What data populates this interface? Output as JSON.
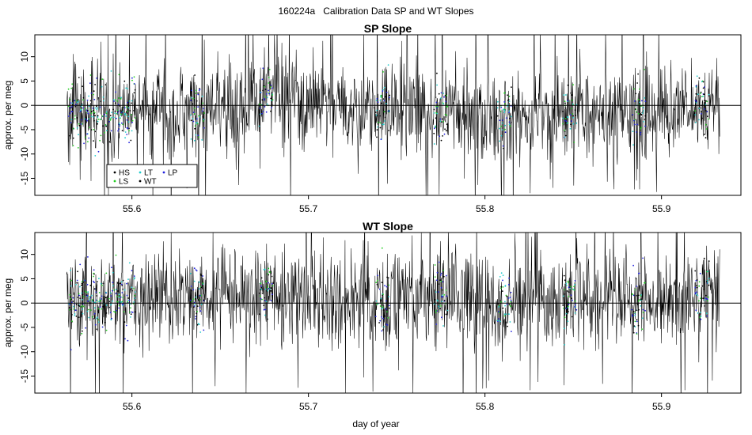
{
  "figure": {
    "title": "160224a   Calibration Data SP and WT Slopes",
    "xlabel": "day of year"
  },
  "colors": {
    "WT": "#000000",
    "HS": "#000000",
    "LS": "#22cc22",
    "LT": "#22cccc",
    "LP": "#2222dd",
    "zero_line": "#000000"
  },
  "legend": {
    "position": "bottom-left",
    "entries": [
      "HS",
      "LT",
      "LP",
      "LS",
      "WT"
    ]
  },
  "chart_data": [
    {
      "type": "line",
      "title": "SP Slope",
      "xlabel": "",
      "ylabel": "approx. per meg",
      "xlim": [
        55.545,
        55.945
      ],
      "ylim": [
        -18.5,
        14.5
      ],
      "xticks": [
        55.6,
        55.7,
        55.8,
        55.9
      ],
      "xtick_labels": [
        "55.6",
        "55.7",
        "55.8",
        "55.9"
      ],
      "yticks": [
        -15,
        -10,
        -5,
        0,
        5,
        10
      ],
      "ytick_labels": [
        "-15",
        "-10",
        "-5",
        "0",
        "5",
        "10"
      ],
      "x_range_data": [
        55.563,
        55.933
      ],
      "reference_line_y": 0,
      "series": [
        {
          "name": "WT",
          "style": "line",
          "spread": 5.0,
          "trend": [
            [
              55.563,
              -1
            ],
            [
              55.59,
              -1.5
            ],
            [
              55.61,
              -0.5
            ],
            [
              55.64,
              -1.5
            ],
            [
              55.67,
              1
            ],
            [
              55.68,
              2.5
            ],
            [
              55.7,
              0
            ],
            [
              55.73,
              -1
            ],
            [
              55.76,
              -0.5
            ],
            [
              55.79,
              -1
            ],
            [
              55.81,
              -2.5
            ],
            [
              55.84,
              -2
            ],
            [
              55.86,
              -1.5
            ],
            [
              55.88,
              -1
            ],
            [
              55.9,
              -1.5
            ],
            [
              55.92,
              0.5
            ],
            [
              55.933,
              0.5
            ]
          ]
        },
        {
          "name": "HS",
          "style": "points"
        },
        {
          "name": "LS",
          "style": "points"
        },
        {
          "name": "LT",
          "style": "points"
        },
        {
          "name": "LP",
          "style": "points"
        }
      ],
      "calibration_clusters": [
        55.568,
        55.575,
        55.582,
        55.591,
        55.598,
        55.637,
        55.676,
        55.742,
        55.775,
        55.811,
        55.848,
        55.887,
        55.923
      ]
    },
    {
      "type": "line",
      "title": "WT Slope",
      "xlabel": "day of year",
      "ylabel": "approx. per meg",
      "xlim": [
        55.545,
        55.945
      ],
      "ylim": [
        -18.5,
        14.5
      ],
      "xticks": [
        55.6,
        55.7,
        55.8,
        55.9
      ],
      "xtick_labels": [
        "55.6",
        "55.7",
        "55.8",
        "55.9"
      ],
      "yticks": [
        -15,
        -10,
        -5,
        0,
        5,
        10
      ],
      "ytick_labels": [
        "-15",
        "-10",
        "-5",
        "0",
        "5",
        "10"
      ],
      "x_range_data": [
        55.563,
        55.933
      ],
      "reference_line_y": 0,
      "series": [
        {
          "name": "WT",
          "style": "line",
          "spread": 5.0,
          "trend": [
            [
              55.563,
              1
            ],
            [
              55.59,
              1
            ],
            [
              55.61,
              1.5
            ],
            [
              55.64,
              1
            ],
            [
              55.67,
              2.5
            ],
            [
              55.68,
              3
            ],
            [
              55.7,
              1
            ],
            [
              55.73,
              0.5
            ],
            [
              55.76,
              1
            ],
            [
              55.79,
              0.5
            ],
            [
              55.81,
              -0.5
            ],
            [
              55.84,
              0.5
            ],
            [
              55.86,
              1
            ],
            [
              55.88,
              0.5
            ],
            [
              55.9,
              0
            ],
            [
              55.92,
              2.5
            ],
            [
              55.933,
              2.5
            ]
          ]
        },
        {
          "name": "HS",
          "style": "points"
        },
        {
          "name": "LS",
          "style": "points"
        },
        {
          "name": "LT",
          "style": "points"
        },
        {
          "name": "LP",
          "style": "points"
        }
      ],
      "calibration_clusters": [
        55.568,
        55.575,
        55.582,
        55.591,
        55.598,
        55.637,
        55.676,
        55.742,
        55.775,
        55.811,
        55.848,
        55.887,
        55.923
      ]
    }
  ]
}
